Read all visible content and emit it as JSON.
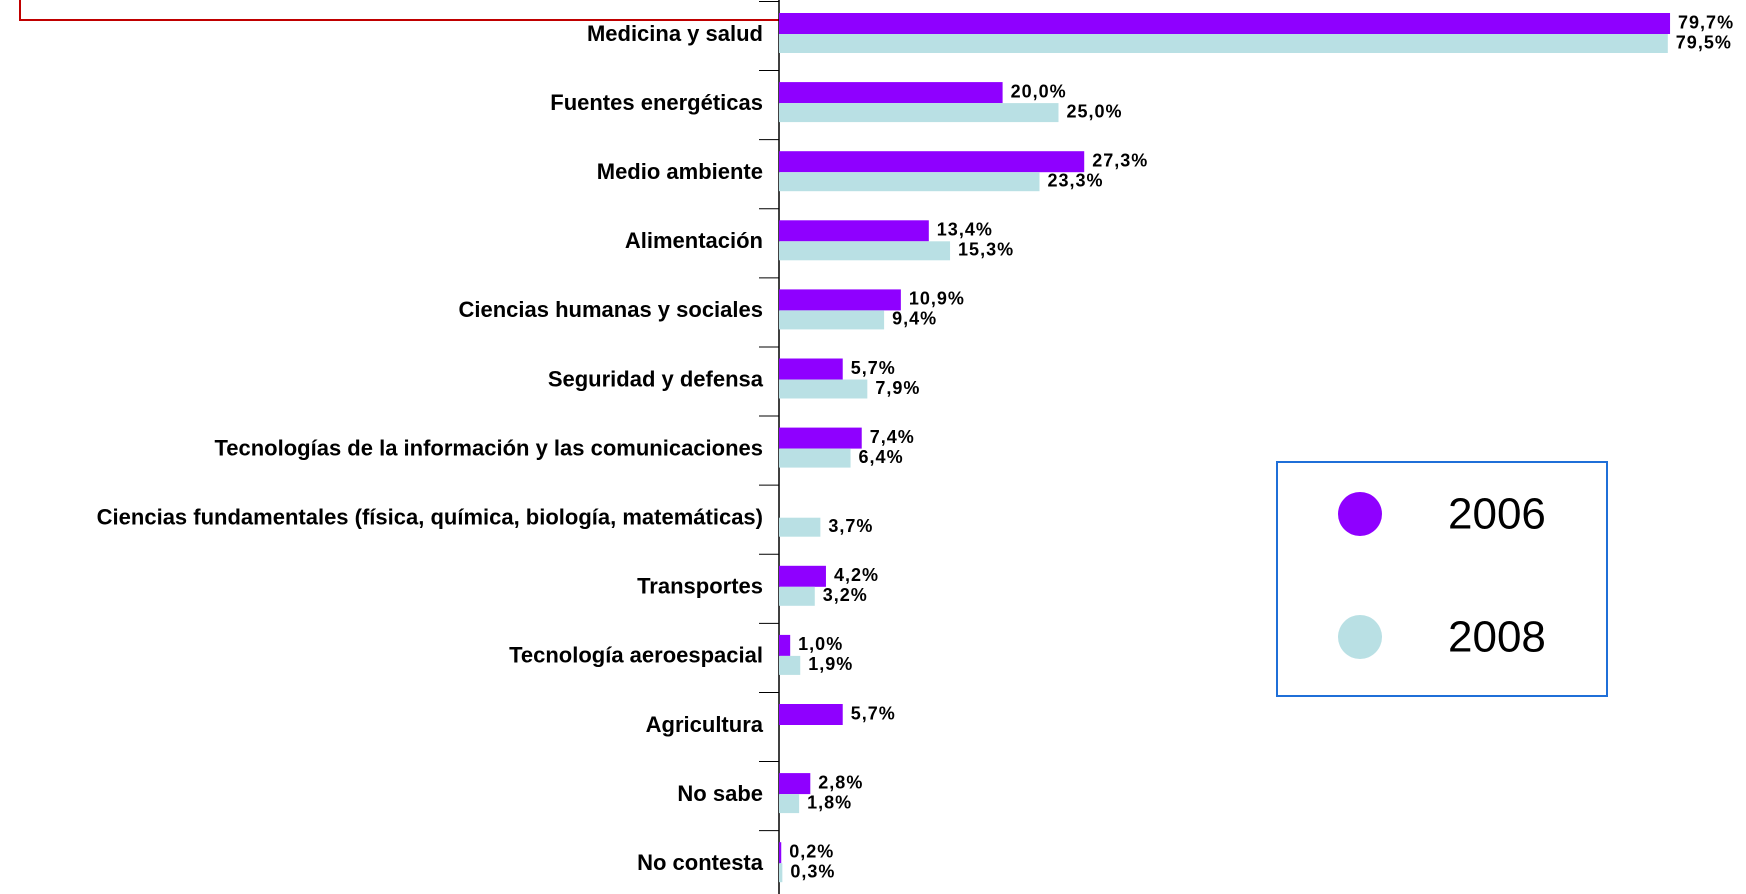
{
  "chart_data": {
    "type": "bar",
    "orientation": "horizontal",
    "categories": [
      "Medicina y salud",
      "Fuentes energéticas",
      "Medio ambiente",
      "Alimentación",
      "Ciencias humanas y sociales",
      "Seguridad y defensa",
      "Tecnologías de la información y las comunicaciones",
      "Ciencias fundamentales (física, química, biología, matemáticas)",
      "Transportes",
      "Tecnología aeroespacial",
      "Agricultura",
      "No sabe",
      "No contesta"
    ],
    "series": [
      {
        "name": "2006",
        "color": "#8f00ff",
        "values": [
          79.7,
          20.0,
          27.3,
          13.4,
          10.9,
          5.7,
          7.4,
          null,
          4.2,
          1.0,
          5.7,
          2.8,
          0.2
        ],
        "value_labels": [
          "79,7%",
          "20,0%",
          "27,3%",
          "13,4%",
          "10,9%",
          "5,7%",
          "7,4%",
          null,
          "4,2%",
          "1,0%",
          "5,7%",
          "2,8%",
          "0,2%"
        ]
      },
      {
        "name": "2008",
        "color": "#b9e0e4",
        "values": [
          79.5,
          25.0,
          23.3,
          15.3,
          9.4,
          7.9,
          6.4,
          3.7,
          3.2,
          1.9,
          null,
          1.8,
          0.3
        ],
        "value_labels": [
          "79,5%",
          "25,0%",
          "23,3%",
          "15,3%",
          "9,4%",
          "7,9%",
          "6,4%",
          "3,7%",
          "3,2%",
          "1,9%",
          null,
          "1,8%",
          "0,3%"
        ]
      }
    ],
    "xlim": [
      0,
      80
    ],
    "legend": "right"
  }
}
